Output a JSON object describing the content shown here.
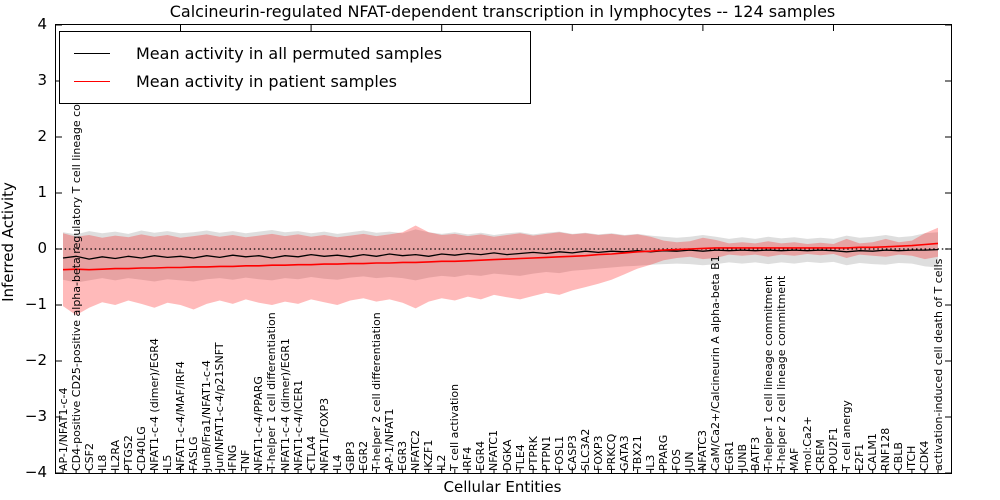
{
  "title": "Calcineurin-regulated NFAT-dependent transcription in lymphocytes -- 124 samples",
  "axes": {
    "xlabel": "Cellular Entities",
    "ylabel": "Inferred Activity",
    "yticks": [
      4,
      3,
      2,
      1,
      0,
      -1,
      -2,
      -3,
      -4
    ]
  },
  "legend": {
    "items": [
      {
        "label": "Mean activity in all permuted samples",
        "color": "#000000"
      },
      {
        "label": "Mean activity in patient samples",
        "color": "#ff0000"
      }
    ]
  },
  "colors": {
    "permuted_line": "#000000",
    "patient_line": "#ff0000",
    "permuted_band": "rgba(0,0,0,0.13)",
    "patient_band": "rgba(255,0,0,0.27)",
    "zero_line": "#000000",
    "axis": "#000000"
  },
  "chart_data": {
    "type": "line",
    "title": "Calcineurin-regulated NFAT-dependent transcription in lymphocytes -- 124 samples",
    "xlabel": "Cellular Entities",
    "ylabel": "Inferred Activity",
    "ylim": [
      -4,
      4
    ],
    "grid": false,
    "zero_line_dotted": true,
    "legend_position": "upper left",
    "categories": [
      "AP-1/NFAT1-c-4",
      "CD4-positive CD25-positive alpha-beta regulatory T cell lineage commitment",
      "CSF2",
      "IL8",
      "IL2RA",
      "PTGS2",
      "CD40LG",
      "NFAT1-c-4 (dimer)/EGR4",
      "IL5",
      "NFAT1-c-4/MAF/IRF4",
      "FASLG",
      "JunB/Fra1/NFAT1-c-4",
      "Jun/NFAT1-c-4/p21SNFT",
      "IFNG",
      "TNF",
      "NFAT1-c-4/PPARG",
      "T-helper 1 cell differentiation",
      "NFAT1-c-4 (dimer)/EGR1",
      "NFAT1-c-4/ICER1",
      "CTLA4",
      "NFAT1/FOXP3",
      "IL4",
      "GBP3",
      "EGR2",
      "T-helper 2 cell differentiation",
      "AP-1/NFAT1",
      "EGR3",
      "NFATC2",
      "IKZF1",
      "IL2",
      "T cell activation",
      "IRF4",
      "EGR4",
      "NFATC1",
      "DGKA",
      "TLE4",
      "PTPRK",
      "PTPN1",
      "FOSL1",
      "CASP3",
      "SLC3A2",
      "FOXP3",
      "PRKCQ",
      "GATA3",
      "TBX21",
      "IL3",
      "PPARG",
      "FOS",
      "JUN",
      "NFATC3",
      "CaM/Ca2+/Calcineurin A alpha-beta B1",
      "EGR1",
      "JUNB",
      "BATF3",
      "T-helper 1 cell lineage commitment",
      "T-helper 2 cell lineage commitment",
      "MAF",
      "mol:Ca2+",
      "CREM",
      "POU2F1",
      "T cell anergy",
      "E2F1",
      "CALM1",
      "RNF128",
      "CBLB",
      "ITCH",
      "CDK4",
      "activation-induced cell death of T cells"
    ],
    "series": [
      {
        "name": "Mean activity in all permuted samples",
        "color": "#000000",
        "values": [
          -0.16,
          -0.13,
          -0.18,
          -0.14,
          -0.17,
          -0.13,
          -0.16,
          -0.12,
          -0.15,
          -0.13,
          -0.16,
          -0.12,
          -0.15,
          -0.11,
          -0.14,
          -0.12,
          -0.16,
          -0.12,
          -0.14,
          -0.1,
          -0.13,
          -0.11,
          -0.14,
          -0.1,
          -0.13,
          -0.09,
          -0.12,
          -0.1,
          -0.13,
          -0.09,
          -0.11,
          -0.08,
          -0.1,
          -0.07,
          -0.1,
          -0.08,
          -0.06,
          -0.08,
          -0.05,
          -0.07,
          -0.04,
          -0.06,
          -0.04,
          -0.05,
          -0.03,
          -0.05,
          -0.03,
          -0.04,
          -0.02,
          -0.04,
          -0.02,
          -0.03,
          -0.02,
          -0.03,
          -0.02,
          -0.03,
          -0.02,
          -0.03,
          -0.02,
          -0.03,
          -0.05,
          -0.03,
          -0.04,
          -0.02,
          -0.03,
          -0.02,
          -0.02,
          -0.01
        ],
        "band_upper": [
          0.3,
          0.26,
          0.32,
          0.28,
          0.31,
          0.27,
          0.33,
          0.29,
          0.32,
          0.28,
          0.3,
          0.33,
          0.29,
          0.32,
          0.28,
          0.31,
          0.34,
          0.3,
          0.32,
          0.28,
          0.31,
          0.27,
          0.3,
          0.33,
          0.29,
          0.31,
          0.28,
          0.35,
          0.3,
          0.27,
          0.3,
          0.26,
          0.29,
          0.25,
          0.28,
          0.3,
          0.26,
          0.29,
          0.31,
          0.27,
          0.29,
          0.26,
          0.28,
          0.25,
          0.27,
          0.24,
          0.22,
          0.2,
          0.22,
          0.25,
          0.22,
          0.18,
          0.21,
          0.18,
          0.22,
          0.19,
          0.21,
          0.18,
          0.2,
          0.18,
          0.24,
          0.2,
          0.22,
          0.25,
          0.21,
          0.23,
          0.28,
          0.3
        ],
        "band_lower": [
          -0.55,
          -0.6,
          -0.56,
          -0.52,
          -0.56,
          -0.52,
          -0.55,
          -0.58,
          -0.54,
          -0.56,
          -0.58,
          -0.54,
          -0.52,
          -0.55,
          -0.51,
          -0.54,
          -0.56,
          -0.52,
          -0.54,
          -0.5,
          -0.53,
          -0.55,
          -0.51,
          -0.49,
          -0.52,
          -0.5,
          -0.52,
          -0.56,
          -0.51,
          -0.48,
          -0.5,
          -0.46,
          -0.48,
          -0.44,
          -0.46,
          -0.48,
          -0.44,
          -0.41,
          -0.43,
          -0.39,
          -0.37,
          -0.35,
          -0.33,
          -0.31,
          -0.3,
          -0.28,
          -0.27,
          -0.26,
          -0.27,
          -0.29,
          -0.27,
          -0.24,
          -0.26,
          -0.24,
          -0.27,
          -0.24,
          -0.26,
          -0.23,
          -0.25,
          -0.23,
          -0.29,
          -0.25,
          -0.27,
          -0.28,
          -0.25,
          -0.26,
          -0.31,
          -0.33
        ]
      },
      {
        "name": "Mean activity in patient samples",
        "color": "#ff0000",
        "values": [
          -0.37,
          -0.36,
          -0.37,
          -0.36,
          -0.35,
          -0.35,
          -0.34,
          -0.34,
          -0.33,
          -0.33,
          -0.32,
          -0.32,
          -0.31,
          -0.31,
          -0.3,
          -0.3,
          -0.29,
          -0.29,
          -0.28,
          -0.28,
          -0.27,
          -0.27,
          -0.26,
          -0.26,
          -0.25,
          -0.25,
          -0.24,
          -0.24,
          -0.23,
          -0.22,
          -0.22,
          -0.21,
          -0.2,
          -0.19,
          -0.18,
          -0.17,
          -0.16,
          -0.15,
          -0.14,
          -0.13,
          -0.12,
          -0.1,
          -0.09,
          -0.07,
          -0.05,
          -0.04,
          -0.02,
          -0.01,
          0.0,
          0.01,
          0.02,
          0.02,
          0.02,
          0.02,
          0.02,
          0.02,
          0.02,
          0.02,
          0.02,
          0.02,
          0.02,
          0.03,
          0.03,
          0.04,
          0.05,
          0.06,
          0.08,
          0.1
        ],
        "band_upper": [
          0.28,
          0.22,
          0.25,
          0.2,
          0.24,
          0.21,
          0.26,
          0.22,
          0.25,
          0.2,
          0.23,
          0.26,
          0.22,
          0.25,
          0.21,
          0.24,
          0.27,
          0.23,
          0.26,
          0.22,
          0.25,
          0.21,
          0.24,
          0.27,
          0.23,
          0.26,
          0.3,
          0.42,
          0.3,
          0.25,
          0.27,
          0.23,
          0.26,
          0.22,
          0.25,
          0.28,
          0.24,
          0.27,
          0.3,
          0.26,
          0.28,
          0.25,
          0.27,
          0.24,
          0.26,
          0.22,
          0.15,
          0.12,
          0.14,
          0.2,
          0.16,
          0.1,
          0.12,
          0.1,
          0.14,
          0.1,
          0.12,
          0.09,
          0.11,
          0.09,
          0.18,
          0.1,
          0.12,
          0.18,
          0.12,
          0.15,
          0.28,
          0.38
        ],
        "band_lower": [
          -1.02,
          -1.18,
          -1.05,
          -0.95,
          -1.0,
          -0.92,
          -0.98,
          -1.05,
          -0.96,
          -1.0,
          -1.08,
          -0.98,
          -0.92,
          -0.98,
          -0.9,
          -0.96,
          -1.0,
          -0.94,
          -0.98,
          -0.9,
          -0.95,
          -1.0,
          -0.92,
          -0.88,
          -0.94,
          -0.9,
          -0.96,
          -1.06,
          -0.94,
          -0.88,
          -0.92,
          -0.85,
          -0.9,
          -0.82,
          -0.86,
          -0.9,
          -0.84,
          -0.78,
          -0.82,
          -0.74,
          -0.68,
          -0.62,
          -0.55,
          -0.45,
          -0.35,
          -0.28,
          -0.2,
          -0.16,
          -0.14,
          -0.18,
          -0.16,
          -0.1,
          -0.12,
          -0.1,
          -0.14,
          -0.1,
          -0.12,
          -0.09,
          -0.11,
          -0.09,
          -0.16,
          -0.1,
          -0.12,
          -0.14,
          -0.1,
          -0.12,
          -0.18,
          -0.14
        ]
      }
    ]
  }
}
